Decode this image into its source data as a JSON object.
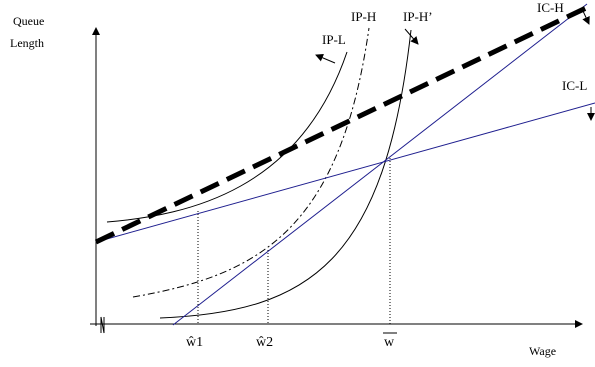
{
  "axes": {
    "y_label_line1": "Queue",
    "y_label_line2": "Length",
    "x_label": "Wage"
  },
  "ticks": {
    "w1": "ŵ1",
    "w2": "ŵ2",
    "wbar": "w"
  },
  "curves": {
    "ip_l": "IP-L",
    "ip_h": "IP-H",
    "ip_h_prime": "IP-H’",
    "ic_h": "IC-H",
    "ic_l": "IC-L"
  },
  "colors": {
    "ic_l_line": "#1f1f8f",
    "ink": "#000000"
  }
}
